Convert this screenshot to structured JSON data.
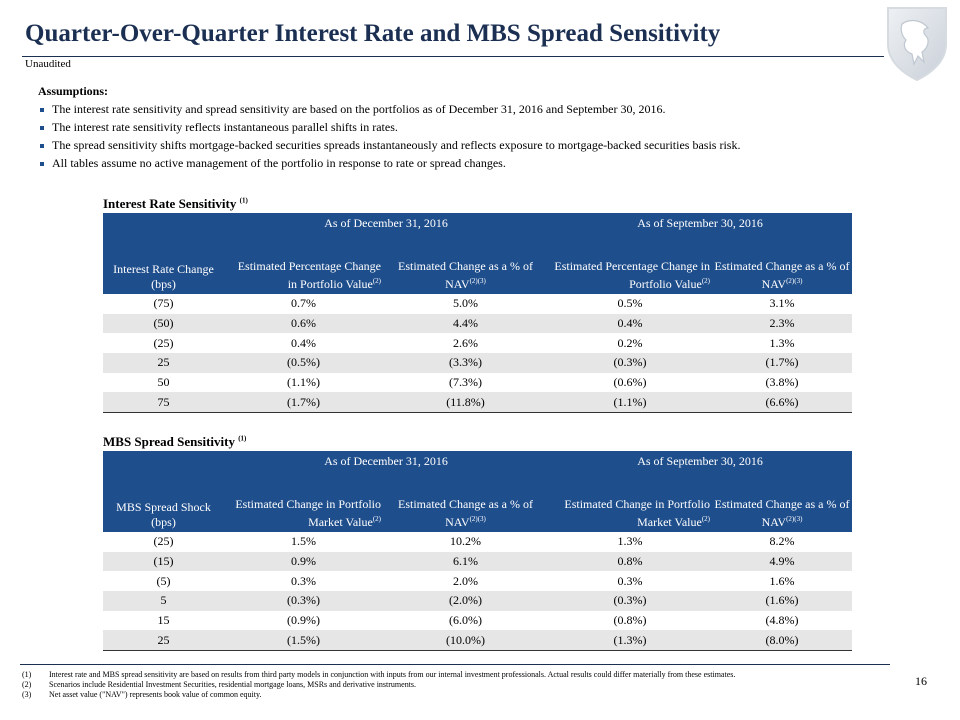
{
  "header": {
    "title": "Quarter-Over-Quarter Interest Rate and MBS Spread Sensitivity",
    "subtitle": "Unaudited"
  },
  "assumptions": {
    "heading": "Assumptions:",
    "bullets": [
      "The interest rate sensitivity and spread sensitivity are based on the portfolios as of December 31, 2016 and September 30, 2016.",
      "The interest rate sensitivity reflects instantaneous parallel shifts in rates.",
      "The spread sensitivity shifts mortgage-backed securities spreads instantaneously and reflects exposure to mortgage-backed securities basis risk.",
      "All tables assume no active management of the portfolio in response to rate or spread changes."
    ]
  },
  "tables": [
    {
      "title": "Interest Rate Sensitivity",
      "title_note": "(1)",
      "groups": [
        "As of December 31, 2016",
        "As of September 30, 2016"
      ],
      "columns": [
        {
          "text": "Interest Rate Change (bps)"
        },
        {
          "text": "Estimated Percentage Change in Portfolio Value",
          "note": "(2)"
        },
        {
          "text": "Estimated Change as a % of NAV",
          "note": "(2)(3)"
        },
        {
          "text": "Estimated Percentage Change in Portfolio Value",
          "note": "(2)"
        },
        {
          "text": "Estimated Change as a % of NAV",
          "note": "(2)(3)"
        }
      ],
      "rows": [
        [
          "(75)",
          "0.7%",
          "5.0%",
          "0.5%",
          "3.1%"
        ],
        [
          "(50)",
          "0.6%",
          "4.4%",
          "0.4%",
          "2.3%"
        ],
        [
          "(25)",
          "0.4%",
          "2.6%",
          "0.2%",
          "1.3%"
        ],
        [
          "25",
          "(0.5%)",
          "(3.3%)",
          "(0.3%)",
          "(1.7%)"
        ],
        [
          "50",
          "(1.1%)",
          "(7.3%)",
          "(0.6%)",
          "(3.8%)"
        ],
        [
          "75",
          "(1.7%)",
          "(11.8%)",
          "(1.1%)",
          "(6.6%)"
        ]
      ]
    },
    {
      "title": "MBS Spread Sensitivity",
      "title_note": "(1)",
      "groups": [
        "As of December 31, 2016",
        "As of September 30, 2016"
      ],
      "columns": [
        {
          "text": "MBS Spread Shock (bps)"
        },
        {
          "text": "Estimated Change in Portfolio Market Value",
          "note": "(2)"
        },
        {
          "text": "Estimated Change as a % of NAV",
          "note": "(2)(3)"
        },
        {
          "text": "Estimated Change in Portfolio Market Value",
          "note": "(2)"
        },
        {
          "text": "Estimated Change as a % of NAV",
          "note": "(2)(3)"
        }
      ],
      "rows": [
        [
          "(25)",
          "1.5%",
          "10.2%",
          "1.3%",
          "8.2%"
        ],
        [
          "(15)",
          "0.9%",
          "6.1%",
          "0.8%",
          "4.9%"
        ],
        [
          "(5)",
          "0.3%",
          "2.0%",
          "0.3%",
          "1.6%"
        ],
        [
          "5",
          "(0.3%)",
          "(2.0%)",
          "(0.3%)",
          "(1.6%)"
        ],
        [
          "15",
          "(0.9%)",
          "(6.0%)",
          "(0.8%)",
          "(4.8%)"
        ],
        [
          "25",
          "(1.5%)",
          "(10.0%)",
          "(1.3%)",
          "(8.0%)"
        ]
      ]
    }
  ],
  "footnotes": [
    {
      "marker": "(1)",
      "text": "Interest rate and MBS spread sensitivity are based on results from third party models in conjunction with inputs from our internal investment professionals. Actual results could differ materially from these estimates."
    },
    {
      "marker": "(2)",
      "text": "Scenarios include Residential Investment Securities, residential mortgage loans, MSRs and derivative instruments."
    },
    {
      "marker": "(3)",
      "text": "Net asset value (\"NAV\") represents book value of common equity."
    }
  ],
  "page_number": "16"
}
